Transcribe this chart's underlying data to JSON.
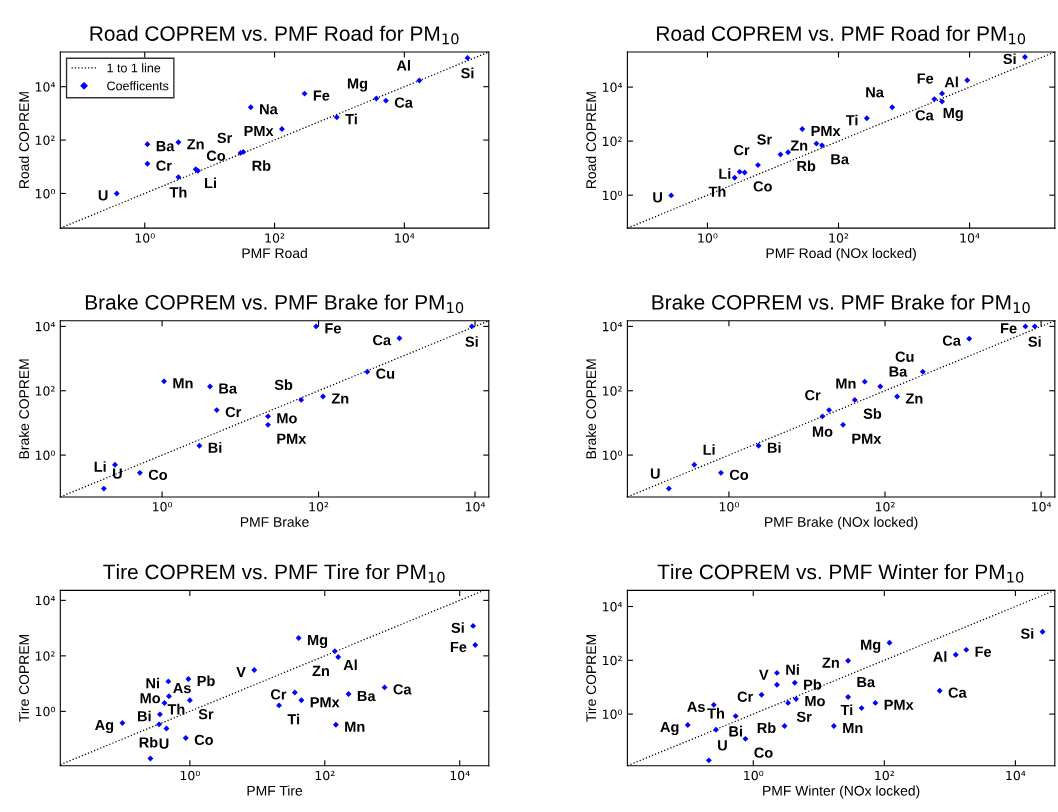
{
  "chart_data": [
    {
      "type": "scatter",
      "title": "Road COPREM vs. PMF Road for PM$_{10}$",
      "xlabel": "PMF Road",
      "ylabel": "Road COPREM",
      "log": "xy",
      "grid": false,
      "legend": "top left",
      "marker": "diamond",
      "xlim": [
        0.05,
        200000
      ],
      "ylim": [
        0.05,
        200000
      ],
      "xticks": [
        {
          "value": 1,
          "label": "10⁰"
        },
        {
          "value": 100,
          "label": "10²"
        },
        {
          "value": 10000,
          "label": "10⁴"
        }
      ],
      "yticks": [
        {
          "value": 1,
          "label": "10⁰"
        },
        {
          "value": 100,
          "label": "10²"
        },
        {
          "value": 10000,
          "label": "10⁴"
        }
      ],
      "series": [
        {
          "type": "line",
          "name": "1 to 1 line",
          "color": "#000000",
          "line_style": "dotted",
          "marker": "none",
          "x": [
            0.05,
            200000
          ],
          "values": [
            0.05,
            200000
          ]
        },
        {
          "type": "scatter",
          "name": "Coefficents",
          "color": "#0000ff",
          "x": [
            94000,
            17000,
            5200,
            3700,
            290,
            910,
            43,
            130,
            1.1,
            3.3,
            30,
            33,
            1.1,
            6.1,
            6.6,
            3.3,
            0.37
          ],
          "values": [
            120000,
            17000,
            3000,
            3600,
            5500,
            720,
            1700,
            260,
            70,
            83,
            33,
            36,
            13,
            8.1,
            7.1,
            4.1,
            1.0
          ]
        }
      ],
      "annotations": [
        {
          "text": "Si",
          "x": 94000,
          "y": 120000
        },
        {
          "text": "Al",
          "x": 17000,
          "y": 17000
        },
        {
          "text": "Ca",
          "x": 5200,
          "y": 3000
        },
        {
          "text": "Mg",
          "x": 3700,
          "y": 3600
        },
        {
          "text": "Fe",
          "x": 290,
          "y": 5500
        },
        {
          "text": "Ti",
          "x": 910,
          "y": 720
        },
        {
          "text": "Na",
          "x": 43,
          "y": 1700
        },
        {
          "text": "PMx",
          "x": 130,
          "y": 260
        },
        {
          "text": "Ba",
          "x": 1.1,
          "y": 70
        },
        {
          "text": "Zn",
          "x": 3.3,
          "y": 83
        },
        {
          "text": "Sr",
          "x": 30,
          "y": 33
        },
        {
          "text": "Rb",
          "x": 33,
          "y": 36
        },
        {
          "text": "Cr",
          "x": 1.1,
          "y": 13
        },
        {
          "text": "Li",
          "x": 6.1,
          "y": 8.1
        },
        {
          "text": "Co",
          "x": 6.6,
          "y": 7.1
        },
        {
          "text": "Th",
          "x": 3.3,
          "y": 4.1
        },
        {
          "text": "U",
          "x": 0.37,
          "y": 1.0
        }
      ]
    },
    {
      "type": "scatter",
      "title": "Road COPREM vs. PMF Road for PM$_{10}$",
      "xlabel": "PMF Road (NOx locked)",
      "ylabel": "Road COPREM",
      "log": "xy",
      "grid": false,
      "marker": "diamond",
      "xlim": [
        0.06,
        200000
      ],
      "ylim": [
        0.06,
        200000
      ],
      "xticks": [
        {
          "value": 1,
          "label": "10⁰"
        },
        {
          "value": 100,
          "label": "10²"
        },
        {
          "value": 10000,
          "label": "10⁴"
        }
      ],
      "yticks": [
        {
          "value": 1,
          "label": "10⁰"
        },
        {
          "value": 100,
          "label": "10²"
        },
        {
          "value": 10000,
          "label": "10⁴"
        }
      ],
      "series": [
        {
          "type": "line",
          "color": "#000000",
          "line_style": "dotted",
          "marker": "none",
          "x": [
            0.06,
            200000
          ],
          "values": [
            0.06,
            200000
          ]
        },
        {
          "type": "scatter",
          "color": "#0000ff",
          "x": [
            70000,
            9200,
            3800,
            2900,
            3800,
            660,
            270,
            28,
            46,
            56,
            13,
            17,
            5.9,
            3.1,
            3.7,
            2.6,
            0.28
          ],
          "values": [
            130000,
            18000,
            5800,
            3600,
            2950,
            1800,
            700,
            280,
            81,
            70,
            32,
            39,
            13,
            7.3,
            6.9,
            4.4,
            0.98
          ]
        }
      ],
      "annotations": [
        {
          "text": "Si",
          "x": 70000,
          "y": 130000
        },
        {
          "text": "Al",
          "x": 9200,
          "y": 18000
        },
        {
          "text": "Fe",
          "x": 3800,
          "y": 5800
        },
        {
          "text": "Mg",
          "x": 2900,
          "y": 3600
        },
        {
          "text": "Ca",
          "x": 3800,
          "y": 2950
        },
        {
          "text": "Na",
          "x": 660,
          "y": 1800
        },
        {
          "text": "Ti",
          "x": 270,
          "y": 700
        },
        {
          "text": "PMx",
          "x": 28,
          "y": 280
        },
        {
          "text": "Zn",
          "x": 46,
          "y": 81
        },
        {
          "text": "Ba",
          "x": 56,
          "y": 70
        },
        {
          "text": "Sr",
          "x": 13,
          "y": 32
        },
        {
          "text": "Rb",
          "x": 17,
          "y": 39
        },
        {
          "text": "Cr",
          "x": 5.9,
          "y": 13
        },
        {
          "text": "Li",
          "x": 3.1,
          "y": 7.3
        },
        {
          "text": "Co",
          "x": 3.7,
          "y": 6.9
        },
        {
          "text": "Th",
          "x": 2.6,
          "y": 4.4
        },
        {
          "text": "U",
          "x": 0.28,
          "y": 0.98
        }
      ]
    },
    {
      "type": "scatter",
      "title": "Brake COPREM vs. PMF Brake for PM$_{10}$",
      "xlabel": "PMF Brake",
      "ylabel": "Brake COPREM",
      "log": "xy",
      "grid": false,
      "marker": "diamond",
      "xlim": [
        0.05,
        15000
      ],
      "ylim": [
        0.05,
        15000
      ],
      "xticks": [
        {
          "value": 1,
          "label": "10⁰"
        },
        {
          "value": 100,
          "label": "10²"
        },
        {
          "value": 10000,
          "label": "10⁴"
        }
      ],
      "yticks": [
        {
          "value": 1,
          "label": "10⁰"
        },
        {
          "value": 100,
          "label": "10²"
        },
        {
          "value": 10000,
          "label": "10⁴"
        }
      ],
      "series": [
        {
          "type": "line",
          "color": "#000000",
          "line_style": "dotted",
          "marker": "none",
          "x": [
            0.05,
            15000
          ],
          "values": [
            0.05,
            15000
          ]
        },
        {
          "type": "scatter",
          "color": "#0000ff",
          "x": [
            93,
            9100,
            1080,
            420,
            1.06,
            4.1,
            60,
            114,
            5.0,
            22.6,
            22.6,
            3.0,
            0.25,
            0.52,
            0.18
          ],
          "values": [
            10000,
            10000,
            4300,
            390,
            196,
            135,
            52,
            66,
            25,
            16,
            8.7,
            1.95,
            0.5,
            0.28,
            0.091
          ]
        }
      ],
      "annotations": [
        {
          "text": "Fe",
          "x": 93,
          "y": 10000
        },
        {
          "text": "Si",
          "x": 9100,
          "y": 10000
        },
        {
          "text": "Ca",
          "x": 1080,
          "y": 4300
        },
        {
          "text": "Cu",
          "x": 420,
          "y": 390
        },
        {
          "text": "Mn",
          "x": 1.06,
          "y": 196
        },
        {
          "text": "Ba",
          "x": 4.1,
          "y": 135
        },
        {
          "text": "Sb",
          "x": 60,
          "y": 52
        },
        {
          "text": "Zn",
          "x": 114,
          "y": 66
        },
        {
          "text": "Cr",
          "x": 5.0,
          "y": 25
        },
        {
          "text": "Mo",
          "x": 22.6,
          "y": 16
        },
        {
          "text": "PMx",
          "x": 22.6,
          "y": 8.7
        },
        {
          "text": "Bi",
          "x": 3.0,
          "y": 1.95
        },
        {
          "text": "Li",
          "x": 0.25,
          "y": 0.5
        },
        {
          "text": "Co",
          "x": 0.52,
          "y": 0.28
        },
        {
          "text": "U",
          "x": 0.18,
          "y": 0.091
        }
      ]
    },
    {
      "type": "scatter",
      "title": "Brake COPREM vs. PMF Brake for PM$_{10}$",
      "xlabel": "PMF Brake (NOx locked)",
      "ylabel": "Brake COPREM",
      "log": "xy",
      "grid": false,
      "marker": "diamond",
      "xlim": [
        0.05,
        15000
      ],
      "ylim": [
        0.05,
        15000
      ],
      "xticks": [
        {
          "value": 1,
          "label": "10⁰"
        },
        {
          "value": 100,
          "label": "10²"
        },
        {
          "value": 10000,
          "label": "10⁴"
        }
      ],
      "yticks": [
        {
          "value": 1,
          "label": "10⁰"
        },
        {
          "value": 100,
          "label": "10²"
        },
        {
          "value": 10000,
          "label": "10⁴"
        }
      ],
      "series": [
        {
          "type": "line",
          "color": "#000000",
          "line_style": "dotted",
          "marker": "none",
          "x": [
            0.05,
            15000
          ],
          "values": [
            0.05,
            15000
          ]
        },
        {
          "type": "scatter",
          "color": "#0000ff",
          "x": [
            8300,
            6300,
            1200,
            305,
            55,
            87,
            143,
            41,
            19.2,
            15.8,
            29,
            2.4,
            0.36,
            0.79,
            0.17
          ],
          "values": [
            10000,
            10000,
            4150,
            390,
            192,
            135,
            66,
            52,
            25,
            16,
            8.7,
            1.95,
            0.5,
            0.28,
            0.091
          ]
        }
      ],
      "annotations": [
        {
          "text": "Si",
          "x": 8300,
          "y": 10000
        },
        {
          "text": "Fe",
          "x": 6300,
          "y": 10000
        },
        {
          "text": "Ca",
          "x": 1200,
          "y": 4150
        },
        {
          "text": "Cu",
          "x": 305,
          "y": 390
        },
        {
          "text": "Mn",
          "x": 55,
          "y": 192
        },
        {
          "text": "Ba",
          "x": 87,
          "y": 135
        },
        {
          "text": "Zn",
          "x": 143,
          "y": 66
        },
        {
          "text": "Sb",
          "x": 41,
          "y": 52
        },
        {
          "text": "Cr",
          "x": 19.2,
          "y": 25
        },
        {
          "text": "Mo",
          "x": 15.8,
          "y": 16
        },
        {
          "text": "PMx",
          "x": 29,
          "y": 8.7
        },
        {
          "text": "Bi",
          "x": 2.4,
          "y": 1.95
        },
        {
          "text": "Li",
          "x": 0.36,
          "y": 0.5
        },
        {
          "text": "Co",
          "x": 0.79,
          "y": 0.28
        },
        {
          "text": "U",
          "x": 0.17,
          "y": 0.091
        }
      ]
    },
    {
      "type": "scatter",
      "title": "Tire COPREM vs. PMF Tire for PM$_{10}$",
      "xlabel": "PMF Tire",
      "ylabel": "Tire COPREM",
      "log": "xy",
      "grid": false,
      "marker": "diamond",
      "xlim": [
        0.012,
        27000
      ],
      "ylim": [
        0.011,
        23000
      ],
      "xticks": [
        {
          "value": 1,
          "label": "10⁰"
        },
        {
          "value": 100,
          "label": "10²"
        },
        {
          "value": 10000,
          "label": "10⁴"
        }
      ],
      "yticks": [
        {
          "value": 1,
          "label": "10⁰"
        },
        {
          "value": 100,
          "label": "10²"
        },
        {
          "value": 10000,
          "label": "10⁴"
        }
      ],
      "series": [
        {
          "type": "line",
          "color": "#000000",
          "line_style": "dotted",
          "marker": "none",
          "x": [
            0.012,
            23000
          ],
          "values": [
            0.012,
            23000
          ]
        },
        {
          "type": "scatter",
          "color": "#0000ff",
          "x": [
            15800,
            17000,
            41,
            141,
            158,
            9.0,
            0.95,
            0.48,
            0.49,
            0.42,
            1.0,
            0.36,
            0.45,
            0.35,
            0.1,
            0.87,
            0.26,
            36,
            45,
            21,
            225,
            770,
            146
          ],
          "values": [
            1200,
            245,
            440,
            148,
            91,
            31,
            14.6,
            12,
            3.5,
            2.0,
            2.5,
            0.78,
            0.24,
            0.34,
            0.38,
            0.11,
            0.02,
            4.8,
            2.5,
            1.64,
            4.2,
            7.3,
            0.33
          ]
        }
      ],
      "annotations": [
        {
          "text": "Si",
          "x": 15800,
          "y": 1200
        },
        {
          "text": "Fe",
          "x": 17000,
          "y": 245
        },
        {
          "text": "Mg",
          "x": 41,
          "y": 440
        },
        {
          "text": "Al",
          "x": 141,
          "y": 148
        },
        {
          "text": "Zn",
          "x": 158,
          "y": 91
        },
        {
          "text": "V",
          "x": 9.0,
          "y": 31
        },
        {
          "text": "Pb",
          "x": 0.95,
          "y": 14.6
        },
        {
          "text": "Ni",
          "x": 0.48,
          "y": 12
        },
        {
          "text": "Mo",
          "x": 0.49,
          "y": 3.5
        },
        {
          "text": "As",
          "x": 0.42,
          "y": 2.0
        },
        {
          "text": "Sr",
          "x": 1.0,
          "y": 2.5
        },
        {
          "text": "Bi",
          "x": 0.36,
          "y": 0.78
        },
        {
          "text": "Rb",
          "x": 0.45,
          "y": 0.24
        },
        {
          "text": "Th",
          "x": 0.35,
          "y": 0.34
        },
        {
          "text": "Ag",
          "x": 0.1,
          "y": 0.38
        },
        {
          "text": "Co",
          "x": 0.87,
          "y": 0.11
        },
        {
          "text": "U",
          "x": 0.26,
          "y": 0.02
        },
        {
          "text": "Cr",
          "x": 36,
          "y": 4.8
        },
        {
          "text": "PMx",
          "x": 45,
          "y": 2.5
        },
        {
          "text": "Ti",
          "x": 21,
          "y": 1.64
        },
        {
          "text": "Ba",
          "x": 225,
          "y": 4.2
        },
        {
          "text": "Ca",
          "x": 770,
          "y": 7.3
        },
        {
          "text": "Mn",
          "x": 146,
          "y": 0.33
        }
      ]
    },
    {
      "type": "scatter",
      "title": "Tire COPREM vs. PMF Winter for PM$_{10}$",
      "xlabel": "PMF Winter (NOx locked)",
      "ylabel": "Tire COPREM",
      "log": "xy",
      "grid": false,
      "marker": "diamond",
      "xlim": [
        0.012,
        40000
      ],
      "ylim": [
        0.012,
        40000
      ],
      "xticks": [
        {
          "value": 1,
          "label": "10⁰"
        },
        {
          "value": 100,
          "label": "10²"
        },
        {
          "value": 10000,
          "label": "10⁴"
        }
      ],
      "yticks": [
        {
          "value": 1,
          "label": "10⁰"
        },
        {
          "value": 100,
          "label": "10²"
        },
        {
          "value": 10000,
          "label": "10⁴"
        }
      ],
      "series": [
        {
          "type": "line",
          "color": "#000000",
          "line_style": "dotted",
          "marker": "none",
          "x": [
            0.012,
            40000
          ],
          "values": [
            0.012,
            40000
          ]
        },
        {
          "type": "scatter",
          "color": "#0000ff",
          "x": [
            26000,
            1780,
            1230,
            120,
            28,
            2.3,
            2.3,
            4.3,
            1.34,
            4.5,
            3.4,
            28,
            73,
            45,
            700,
            0.25,
            0.54,
            0.1,
            0.27,
            3.0,
            17,
            0.76,
            0.21
          ],
          "values": [
            1150,
            245,
            160,
            450,
            96,
            34,
            12.3,
            14.6,
            5.2,
            3.6,
            2.6,
            4.3,
            2.6,
            1.67,
            7.4,
            2.2,
            0.84,
            0.39,
            0.26,
            0.36,
            0.36,
            0.12,
            0.019
          ]
        }
      ],
      "annotations": [
        {
          "text": "Si",
          "x": 26000,
          "y": 1150
        },
        {
          "text": "Fe",
          "x": 1780,
          "y": 245
        },
        {
          "text": "Al",
          "x": 1230,
          "y": 160
        },
        {
          "text": "Mg",
          "x": 120,
          "y": 450
        },
        {
          "text": "Zn",
          "x": 28,
          "y": 96
        },
        {
          "text": "V",
          "x": 2.3,
          "y": 34
        },
        {
          "text": "Ni",
          "x": 2.3,
          "y": 12.3
        },
        {
          "text": "Pb",
          "x": 4.3,
          "y": 14.6
        },
        {
          "text": "Cr",
          "x": 1.34,
          "y": 5.2
        },
        {
          "text": "Mo",
          "x": 4.5,
          "y": 3.6
        },
        {
          "text": "Sr",
          "x": 3.4,
          "y": 2.6
        },
        {
          "text": "Ba",
          "x": 28,
          "y": 4.3
        },
        {
          "text": "PMx",
          "x": 73,
          "y": 2.6
        },
        {
          "text": "Ti",
          "x": 45,
          "y": 1.67
        },
        {
          "text": "Ca",
          "x": 700,
          "y": 7.4
        },
        {
          "text": "As",
          "x": 0.25,
          "y": 2.2
        },
        {
          "text": "Bi",
          "x": 0.54,
          "y": 0.84
        },
        {
          "text": "Ag",
          "x": 0.1,
          "y": 0.39
        },
        {
          "text": "Th",
          "x": 0.27,
          "y": 0.26
        },
        {
          "text": "Rb",
          "x": 3.0,
          "y": 0.36
        },
        {
          "text": "Mn",
          "x": 17,
          "y": 0.36
        },
        {
          "text": "Co",
          "x": 0.76,
          "y": 0.12
        },
        {
          "text": "U",
          "x": 0.21,
          "y": 0.019
        }
      ]
    }
  ]
}
